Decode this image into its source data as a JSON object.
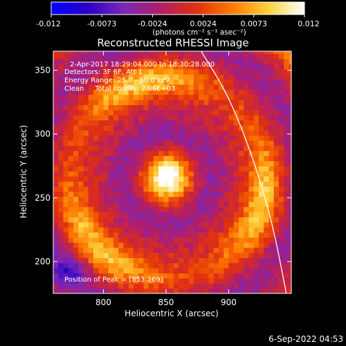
{
  "chart_data": {
    "type": "heatmap",
    "title": "Reconstructed RHESSI Image",
    "xlabel": "Heliocentric X (arcsec)",
    "ylabel": "Heliocentric Y (arcsec)",
    "xlim": [
      760,
      950
    ],
    "ylim": [
      175,
      365
    ],
    "x_ticks": [
      800,
      850,
      900
    ],
    "y_ticks": [
      200,
      250,
      300,
      350
    ],
    "colorbar": {
      "min": -0.012,
      "max": 0.012,
      "ticks": [
        "-0.012",
        "-0.0073",
        "-0.0024",
        "0.0024",
        "0.0073",
        "0.012"
      ],
      "label": "(photons cm⁻² s⁻¹ asec⁻²)",
      "colors": [
        "#0000ff",
        "#2a00c8",
        "#7a28b8",
        "#b01e6a",
        "#e03010",
        "#ff7a00",
        "#ffd23c",
        "#ffffff"
      ]
    },
    "annotations": {
      "time_range": "2-Apr-2017 18:29:04.000 to 18:30:28.000",
      "detectors": "Detectors: 3F 6F, Att 1",
      "energy_range": "Energy Range: 25.0 - 50.0 keV",
      "method_counts": "Clean     Total counts: 2.86E+03",
      "peak_position": "Position of Peak = [853,269]"
    },
    "peak": [
      853,
      269
    ],
    "sources": [
      {
        "kind": "core",
        "x": 850,
        "y": 265,
        "intensity": 0.012
      },
      {
        "kind": "ring",
        "x": 850,
        "y": 265,
        "intensity": 0.007
      },
      {
        "kind": "trough",
        "x": 850,
        "y": 265,
        "intensity": -0.003
      }
    ],
    "limb_curve": [
      [
        878,
        365
      ],
      [
        900,
        330
      ],
      [
        920,
        280
      ],
      [
        935,
        230
      ],
      [
        946,
        175
      ]
    ],
    "grid": false
  },
  "footer": {
    "date": "6-Sep-2022 04:53"
  }
}
